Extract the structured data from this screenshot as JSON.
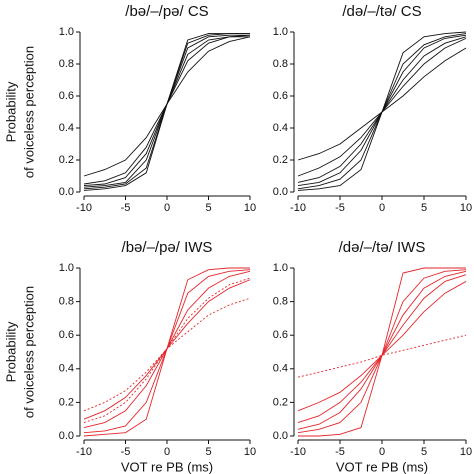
{
  "chart_data": [
    {
      "type": "line",
      "title": "/bə/–/pə/ CS",
      "ylabel": [
        "Probability",
        "of voiceless perception"
      ],
      "x": [
        -10,
        -7.5,
        -5,
        -2.5,
        0,
        2.5,
        5,
        7.5,
        10
      ],
      "xlim": [
        -10,
        10
      ],
      "xticks": [
        -10,
        -5,
        0,
        5,
        10
      ],
      "ylim": [
        0,
        1
      ],
      "yticks": [
        {
          "value": 0,
          "label": "0.0"
        },
        0.2,
        0.4,
        0.6,
        0.8,
        {
          "value": 1,
          "label": "1.0"
        }
      ],
      "series": [
        {
          "color": "#111111",
          "values": [
            0.03,
            0.04,
            0.06,
            0.2,
            0.55,
            0.9,
            0.97,
            0.98,
            0.98
          ]
        },
        {
          "color": "#111111",
          "values": [
            0.02,
            0.03,
            0.05,
            0.15,
            0.55,
            0.93,
            0.98,
            0.99,
            0.99
          ]
        },
        {
          "color": "#111111",
          "values": [
            0.05,
            0.07,
            0.12,
            0.28,
            0.55,
            0.82,
            0.93,
            0.97,
            0.98
          ]
        },
        {
          "color": "#111111",
          "values": [
            0.1,
            0.14,
            0.2,
            0.34,
            0.55,
            0.75,
            0.88,
            0.94,
            0.97
          ]
        },
        {
          "color": "#111111",
          "values": [
            0.01,
            0.02,
            0.04,
            0.12,
            0.55,
            0.95,
            0.99,
            0.99,
            0.99
          ]
        },
        {
          "color": "#111111",
          "values": [
            0.04,
            0.05,
            0.09,
            0.24,
            0.55,
            0.86,
            0.95,
            0.97,
            0.97
          ]
        }
      ]
    },
    {
      "type": "line",
      "title": "/də/–/tə/ CS",
      "x": [
        -10,
        -7.5,
        -5,
        -2.5,
        0,
        2.5,
        5,
        7.5,
        10
      ],
      "xlim": [
        -10,
        10
      ],
      "xticks": [
        -10,
        -5,
        0,
        5,
        10
      ],
      "ylim": [
        0,
        1
      ],
      "yticks": [
        {
          "value": 0,
          "label": "0.0"
        },
        0.2,
        0.4,
        0.6,
        0.8,
        {
          "value": 1,
          "label": "1.0"
        }
      ],
      "series": [
        {
          "color": "#111111",
          "values": [
            0.02,
            0.04,
            0.08,
            0.2,
            0.5,
            0.8,
            0.92,
            0.97,
            0.99
          ]
        },
        {
          "color": "#111111",
          "values": [
            0.1,
            0.15,
            0.22,
            0.34,
            0.5,
            0.66,
            0.8,
            0.9,
            0.96
          ]
        },
        {
          "color": "#111111",
          "values": [
            0.04,
            0.06,
            0.12,
            0.26,
            0.5,
            0.75,
            0.9,
            0.96,
            0.98
          ]
        },
        {
          "color": "#111111",
          "values": [
            0.01,
            0.02,
            0.04,
            0.14,
            0.5,
            0.87,
            0.97,
            0.99,
            1.0
          ]
        },
        {
          "color": "#111111",
          "values": [
            0.2,
            0.24,
            0.3,
            0.4,
            0.5,
            0.6,
            0.72,
            0.82,
            0.9
          ]
        },
        {
          "color": "#111111",
          "values": [
            0.06,
            0.09,
            0.16,
            0.3,
            0.5,
            0.7,
            0.85,
            0.93,
            0.97
          ]
        }
      ]
    },
    {
      "type": "line",
      "title": "/bə/–/pə/ IWS",
      "ylabel": [
        "Probability",
        "of voiceless perception"
      ],
      "xlabel": "VOT re PB (ms)",
      "x": [
        -10,
        -7.5,
        -5,
        -2.5,
        0,
        2.5,
        5,
        7.5,
        10
      ],
      "xlim": [
        -10,
        10
      ],
      "xticks": [
        -10,
        -5,
        0,
        5,
        10
      ],
      "ylim": [
        0,
        1
      ],
      "yticks": [
        {
          "value": 0,
          "label": "0.0"
        },
        0.2,
        0.4,
        0.6,
        0.8,
        {
          "value": 1,
          "label": "1.0"
        }
      ],
      "series": [
        {
          "color": "#e3262b",
          "values": [
            0.02,
            0.03,
            0.06,
            0.2,
            0.52,
            0.85,
            0.95,
            0.98,
            0.99
          ]
        },
        {
          "color": "#e3262b",
          "values": [
            0.0,
            0.01,
            0.02,
            0.1,
            0.52,
            0.93,
            0.99,
            1.0,
            1.0
          ]
        },
        {
          "color": "#e3262b",
          "values": [
            0.05,
            0.08,
            0.15,
            0.3,
            0.52,
            0.75,
            0.88,
            0.95,
            0.98
          ]
        },
        {
          "color": "#e3262b",
          "values": [
            0.1,
            0.15,
            0.23,
            0.36,
            0.52,
            0.67,
            0.8,
            0.88,
            0.93
          ]
        },
        {
          "color": "#e3262b",
          "dashed": true,
          "values": [
            0.15,
            0.2,
            0.27,
            0.38,
            0.52,
            0.62,
            0.72,
            0.78,
            0.82
          ]
        },
        {
          "color": "#e3262b",
          "dashed": true,
          "values": [
            0.08,
            0.12,
            0.2,
            0.34,
            0.52,
            0.7,
            0.82,
            0.9,
            0.94
          ]
        }
      ]
    },
    {
      "type": "line",
      "title": "/də/–/tə/ IWS",
      "xlabel": "VOT re PB (ms)",
      "x": [
        -10,
        -7.5,
        -5,
        -2.5,
        0,
        2.5,
        5,
        7.5,
        10
      ],
      "xlim": [
        -10,
        10
      ],
      "xticks": [
        -10,
        -5,
        0,
        5,
        10
      ],
      "ylim": [
        0,
        1
      ],
      "yticks": [
        {
          "value": 0,
          "label": "0.0"
        },
        0.2,
        0.4,
        0.6,
        0.8,
        {
          "value": 1,
          "label": "1.0"
        }
      ],
      "series": [
        {
          "color": "#e3262b",
          "values": [
            0.02,
            0.04,
            0.08,
            0.2,
            0.48,
            0.8,
            0.94,
            0.98,
            0.99
          ]
        },
        {
          "color": "#e3262b",
          "values": [
            0.0,
            0.0,
            0.01,
            0.05,
            0.48,
            0.97,
            1.0,
            1.0,
            1.0
          ]
        },
        {
          "color": "#e3262b",
          "values": [
            0.08,
            0.12,
            0.2,
            0.32,
            0.48,
            0.66,
            0.82,
            0.92,
            0.96
          ]
        },
        {
          "color": "#e3262b",
          "values": [
            0.04,
            0.07,
            0.14,
            0.28,
            0.48,
            0.72,
            0.88,
            0.95,
            0.98
          ]
        },
        {
          "color": "#e3262b",
          "dashed": true,
          "values": [
            0.35,
            0.38,
            0.41,
            0.44,
            0.48,
            0.51,
            0.54,
            0.57,
            0.6
          ]
        },
        {
          "color": "#e3262b",
          "values": [
            0.15,
            0.2,
            0.26,
            0.36,
            0.48,
            0.6,
            0.74,
            0.85,
            0.92
          ]
        }
      ]
    }
  ]
}
